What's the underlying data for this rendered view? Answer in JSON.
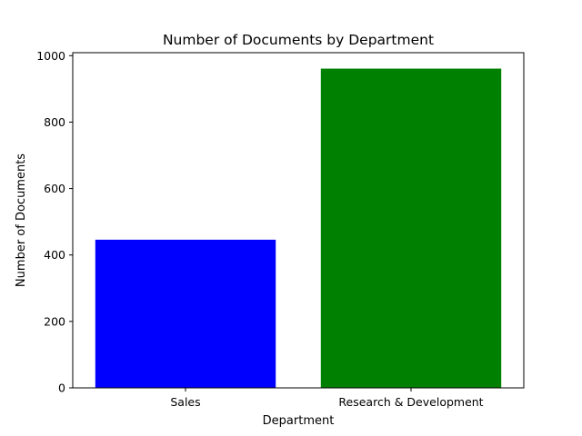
{
  "chart_data": {
    "type": "bar",
    "title": "Number of Documents by Department",
    "xlabel": "Department",
    "ylabel": "Number of Documents",
    "categories": [
      "Sales",
      "Research & Development"
    ],
    "values": [
      446,
      961
    ],
    "colors": [
      "#0000ff",
      "#008000"
    ],
    "ylim": [
      0,
      1009
    ],
    "yticks": [
      0,
      200,
      400,
      600,
      800,
      1000
    ],
    "grid": false,
    "legend": "none"
  }
}
